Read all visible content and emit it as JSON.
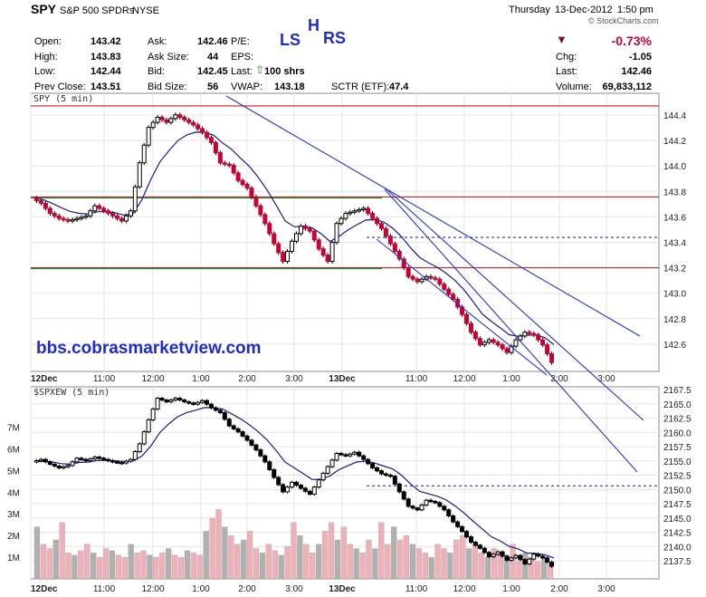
{
  "header": {
    "symbol": "SPY",
    "name": "S&P 500 SPDRs",
    "exchange": "NYSE",
    "day": "Thursday",
    "date": "13-Dec-2012",
    "time": "1:50 pm",
    "watermark": "© StockCharts.com",
    "change_pct": "-0.73%",
    "stats": {
      "open_label": "Open:",
      "open": "143.42",
      "high_label": "High:",
      "high": "143.83",
      "low_label": "Low:",
      "low": "142.44",
      "prev_label": "Prev Close:",
      "prev": "143.51",
      "ask_label": "Ask:",
      "ask": "142.46",
      "asksize_label": "Ask Size:",
      "asksize": "44",
      "bid_label": "Bid:",
      "bid": "142.45",
      "bidsize_label": "Bid Size:",
      "bidsize": "56",
      "pe_label": "P/E:",
      "pe": "",
      "eps_label": "EPS:",
      "eps": "",
      "last_label": "Last:",
      "last_trade": "100 shrs",
      "vwap_label": "VWAP:",
      "vwap": "143.18",
      "sctr_label": "SCTR (ETF):",
      "sctr": "47.4",
      "chg_label": "Chg:",
      "chg": "-1.05",
      "last2_label": "Last:",
      "last": "142.46",
      "volume_label": "Volume:",
      "volume": "69,833,112"
    }
  },
  "annotations": {
    "left_shoulder": "LS",
    "head": "H",
    "right_shoulder": "RS",
    "url": "bbs.cobrasmarketview.com"
  },
  "colors": {
    "price_up": "#000000",
    "price_down": "#cc0033",
    "moving_avg": "#1a1a9c",
    "trendline": "#2233dd",
    "red_level": "#cc2222",
    "green_level": "#228822",
    "annotation_blue": "#1f2bd0",
    "volume_up": "#b0b0b0",
    "volume_down": "#f0b0b8"
  },
  "chart_data": [
    {
      "type": "candlestick",
      "title": "SPY (5 min)",
      "y_ticks": [
        "144.4",
        "144.2",
        "144.0",
        "143.8",
        "143.6",
        "143.4",
        "143.2",
        "143.0",
        "142.8",
        "142.6"
      ],
      "ylim": [
        142.45,
        144.65
      ],
      "x_ticks": [
        "12Dec",
        "11:00",
        "12:00",
        "1:00",
        "2:00",
        "3:00",
        "13Dec",
        "11:00",
        "12:00",
        "1:00",
        "2:00",
        "3:00"
      ],
      "levels": {
        "red": [
          144.55,
          143.83,
          143.27
        ],
        "green": [
          143.83,
          143.27
        ],
        "blue_dashed": [
          143.51
        ]
      },
      "price_path": [
        [
          0,
          143.82
        ],
        [
          8,
          143.78
        ],
        [
          16,
          143.7
        ],
        [
          24,
          143.66
        ],
        [
          32,
          143.64
        ],
        [
          40,
          143.66
        ],
        [
          48,
          143.68
        ],
        [
          56,
          143.76
        ],
        [
          64,
          143.72
        ],
        [
          72,
          143.68
        ],
        [
          80,
          143.64
        ],
        [
          88,
          143.72
        ],
        [
          96,
          144.1
        ],
        [
          104,
          144.38
        ],
        [
          112,
          144.46
        ],
        [
          120,
          144.42
        ],
        [
          128,
          144.48
        ],
        [
          136,
          144.44
        ],
        [
          144,
          144.4
        ],
        [
          152,
          144.34
        ],
        [
          160,
          144.26
        ],
        [
          168,
          144.1
        ],
        [
          176,
          144.08
        ],
        [
          184,
          143.96
        ],
        [
          192,
          143.9
        ],
        [
          200,
          143.76
        ],
        [
          208,
          143.62
        ],
        [
          216,
          143.46
        ],
        [
          224,
          143.32
        ],
        [
          232,
          143.48
        ],
        [
          240,
          143.6
        ],
        [
          248,
          143.56
        ],
        [
          256,
          143.42
        ],
        [
          264,
          143.32
        ],
        [
          272,
          143.62
        ],
        [
          280,
          143.7
        ],
        [
          288,
          143.72
        ],
        [
          296,
          143.74
        ],
        [
          304,
          143.66
        ],
        [
          312,
          143.58
        ],
        [
          320,
          143.46
        ],
        [
          328,
          143.34
        ],
        [
          336,
          143.2
        ],
        [
          344,
          143.16
        ],
        [
          352,
          143.2
        ],
        [
          360,
          143.18
        ],
        [
          368,
          143.1
        ],
        [
          376,
          143.02
        ],
        [
          384,
          142.9
        ],
        [
          392,
          142.76
        ],
        [
          400,
          142.66
        ],
        [
          408,
          142.7
        ],
        [
          416,
          142.66
        ],
        [
          424,
          142.6
        ],
        [
          432,
          142.7
        ],
        [
          440,
          142.76
        ],
        [
          448,
          142.74
        ],
        [
          456,
          142.66
        ],
        [
          464,
          142.52
        ]
      ]
    },
    {
      "type": "candlestick",
      "title": "$SPXEW (5 min)",
      "y_ticks": [
        "2167.5",
        "2165.0",
        "2162.5",
        "2160.0",
        "2157.5",
        "2155.0",
        "2152.5",
        "2150.0",
        "2147.5",
        "2145.0",
        "2142.5",
        "2140.0",
        "2137.5"
      ],
      "volume_ticks": [
        "7M",
        "6M",
        "5M",
        "4M",
        "3M",
        "2M",
        "1M"
      ],
      "ylim": [
        2136.5,
        2168.5
      ],
      "x_ticks": [
        "12Dec",
        "11:00",
        "12:00",
        "1:00",
        "2:00",
        "3:00",
        "13Dec",
        "11:00",
        "12:00",
        "1:00",
        "2:00",
        "3:00"
      ],
      "levels": {
        "blue_dashed": [
          2152.0
        ]
      },
      "price_path": [
        [
          0,
          2156.0
        ],
        [
          8,
          2156.4
        ],
        [
          16,
          2155.6
        ],
        [
          24,
          2155.0
        ],
        [
          32,
          2155.4
        ],
        [
          40,
          2156.6
        ],
        [
          48,
          2156.2
        ],
        [
          56,
          2156.8
        ],
        [
          64,
          2156.4
        ],
        [
          72,
          2156.0
        ],
        [
          80,
          2155.8
        ],
        [
          88,
          2156.4
        ],
        [
          96,
          2159.0
        ],
        [
          104,
          2163.0
        ],
        [
          112,
          2166.6
        ],
        [
          120,
          2166.0
        ],
        [
          128,
          2166.6
        ],
        [
          136,
          2166.0
        ],
        [
          144,
          2165.6
        ],
        [
          152,
          2166.2
        ],
        [
          160,
          2165.0
        ],
        [
          168,
          2164.2
        ],
        [
          176,
          2162.0
        ],
        [
          184,
          2161.0
        ],
        [
          192,
          2159.6
        ],
        [
          200,
          2158.0
        ],
        [
          208,
          2156.0
        ],
        [
          216,
          2153.4
        ],
        [
          224,
          2151.0
        ],
        [
          232,
          2152.6
        ],
        [
          240,
          2151.6
        ],
        [
          248,
          2150.6
        ],
        [
          256,
          2153.0
        ],
        [
          264,
          2155.2
        ],
        [
          272,
          2157.4
        ],
        [
          280,
          2157.0
        ],
        [
          288,
          2157.6
        ],
        [
          296,
          2156.4
        ],
        [
          304,
          2155.0
        ],
        [
          312,
          2154.0
        ],
        [
          320,
          2153.6
        ],
        [
          328,
          2151.0
        ],
        [
          336,
          2148.6
        ],
        [
          344,
          2148.0
        ],
        [
          352,
          2149.6
        ],
        [
          360,
          2149.2
        ],
        [
          368,
          2148.0
        ],
        [
          376,
          2146.0
        ],
        [
          384,
          2144.4
        ],
        [
          392,
          2142.6
        ],
        [
          400,
          2141.6
        ],
        [
          408,
          2140.2
        ],
        [
          416,
          2141.0
        ],
        [
          424,
          2139.6
        ],
        [
          432,
          2140.4
        ],
        [
          440,
          2139.0
        ],
        [
          448,
          2140.6
        ],
        [
          456,
          2140.0
        ],
        [
          464,
          2138.6
        ]
      ],
      "volume_m": [
        2.4,
        1.6,
        1.4,
        1.8,
        2.6,
        1.2,
        1.1,
        1.3,
        1.6,
        1.2,
        1.0,
        1.4,
        1.3,
        1.1,
        1.0,
        1.6,
        1.2,
        1.3,
        1.1,
        1.0,
        1.2,
        1.4,
        1.1,
        1.0,
        1.3,
        1.2,
        1.1,
        2.2,
        2.8,
        3.2,
        2.4,
        2.0,
        1.6,
        1.8,
        2.2,
        1.4,
        1.2,
        1.6,
        1.3,
        1.1,
        1.5,
        2.6,
        2.0,
        1.6,
        1.2,
        1.6,
        2.2,
        2.6,
        1.8,
        2.4,
        1.6,
        1.4,
        1.2,
        1.8,
        1.4,
        2.6,
        1.6,
        2.4,
        1.8,
        2.0,
        1.6,
        1.4,
        1.2,
        1.0,
        1.6,
        1.4,
        1.2,
        1.8,
        2.0,
        1.4,
        1.6,
        1.2,
        1.0,
        1.4,
        1.2,
        1.0,
        1.6,
        0.8,
        1.2,
        1.0,
        0.8,
        1.0,
        0.7
      ]
    }
  ]
}
